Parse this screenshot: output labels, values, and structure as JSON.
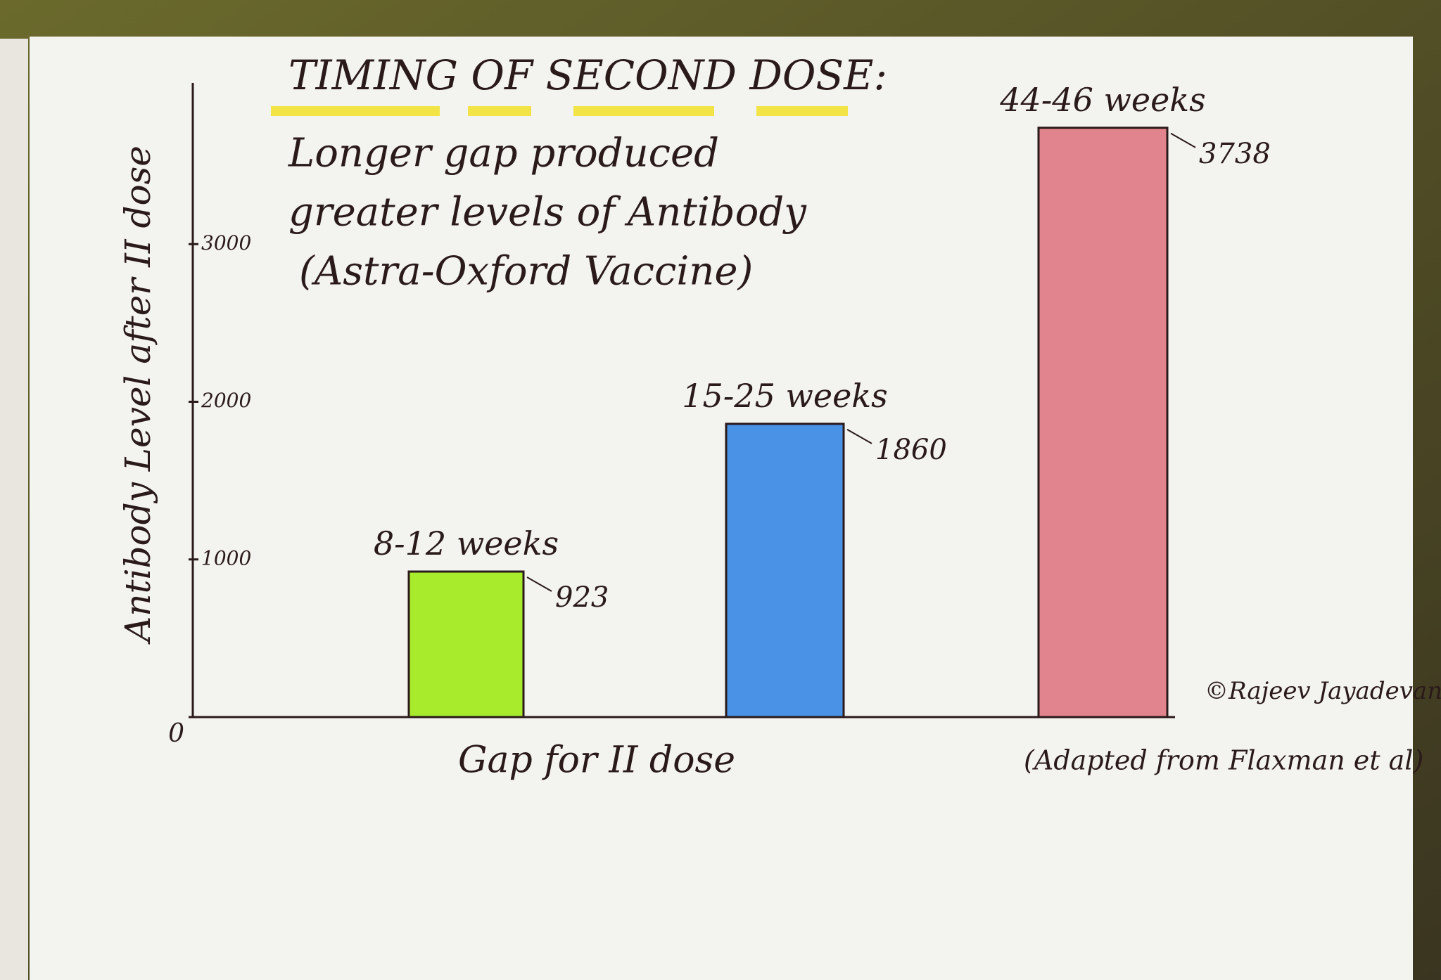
{
  "chart_data": {
    "type": "bar",
    "title": "TIMING OF SECOND DOSE:",
    "subtitle": [
      "Longer gap produced",
      "greater levels of Antibody",
      "(Astra-Oxford Vaccine)"
    ],
    "x_label": "Gap for II dose",
    "y_label": "Antibody Level after II dose",
    "categories": [
      "8-12 weeks",
      "15-25 weeks",
      "44-46 weeks"
    ],
    "values": [
      923,
      1860,
      3738
    ],
    "colors": [
      "#a8ea2c",
      "#4a92e6",
      "#e2848e"
    ],
    "ylim": [
      0,
      4000
    ],
    "yticks": [
      0,
      1000,
      2000,
      3000
    ],
    "annotations": [
      "©Rajeev Jayadevan",
      "(Adapted from Flaxman et al)"
    ]
  }
}
